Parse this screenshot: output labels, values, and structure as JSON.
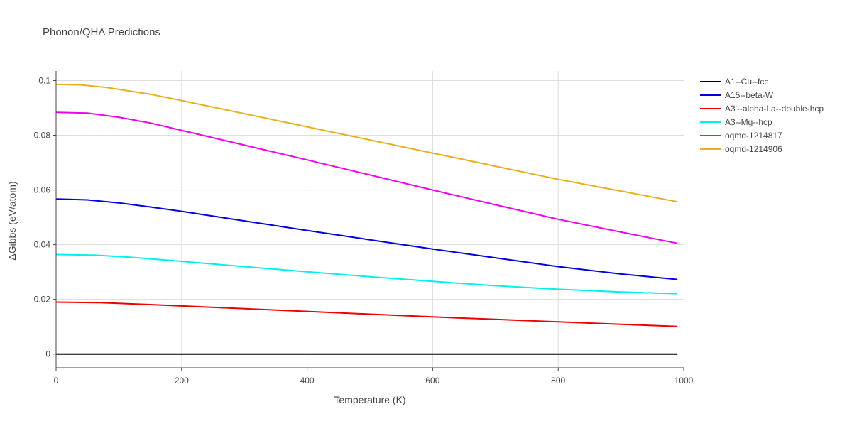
{
  "chart_data": {
    "type": "line",
    "title": "Phonon/QHA Predictions",
    "xlabel": "Temperature (K)",
    "ylabel": "ΔGibbs (eV/atom)",
    "xlim": [
      0,
      1000
    ],
    "ylim": [
      -0.005,
      0.1035
    ],
    "xticks": [
      0,
      200,
      400,
      600,
      800,
      1000
    ],
    "yticks": [
      0,
      0.02,
      0.04,
      0.06,
      0.08,
      0.1
    ],
    "xtick_labels": [
      "0",
      "200",
      "400",
      "600",
      "800",
      "1000"
    ],
    "ytick_labels": [
      "0",
      "0.02",
      "0.04",
      "0.06",
      "0.08",
      "0.1"
    ],
    "grid": true,
    "legend_position": "right",
    "series": [
      {
        "name": "A1--Cu--fcc",
        "color": "#000000",
        "points": [
          [
            0,
            0
          ],
          [
            990,
            0
          ]
        ]
      },
      {
        "name": "A15--beta-W",
        "color": "#0000dd",
        "points": [
          [
            0,
            0.0567
          ],
          [
            50,
            0.0564
          ],
          [
            100,
            0.0553
          ],
          [
            150,
            0.0538
          ],
          [
            200,
            0.0522
          ],
          [
            300,
            0.0487
          ],
          [
            400,
            0.0452
          ],
          [
            500,
            0.0418
          ],
          [
            600,
            0.0384
          ],
          [
            700,
            0.0352
          ],
          [
            800,
            0.032
          ],
          [
            900,
            0.0293
          ],
          [
            990,
            0.0273
          ]
        ]
      },
      {
        "name": "A3'--alpha-La--double-hcp",
        "color": "#ee0000",
        "points": [
          [
            0,
            0.019
          ],
          [
            70,
            0.0188
          ],
          [
            150,
            0.0181
          ],
          [
            200,
            0.0176
          ],
          [
            300,
            0.0166
          ],
          [
            400,
            0.0156
          ],
          [
            500,
            0.0146
          ],
          [
            600,
            0.0136
          ],
          [
            700,
            0.0127
          ],
          [
            800,
            0.0118
          ],
          [
            900,
            0.0109
          ],
          [
            990,
            0.0101
          ]
        ]
      },
      {
        "name": "A3--Mg--hcp",
        "color": "#00f0f0",
        "points": [
          [
            0,
            0.0364
          ],
          [
            60,
            0.0362
          ],
          [
            120,
            0.0354
          ],
          [
            200,
            0.0339
          ],
          [
            300,
            0.032
          ],
          [
            400,
            0.0301
          ],
          [
            500,
            0.0283
          ],
          [
            600,
            0.0266
          ],
          [
            700,
            0.025
          ],
          [
            800,
            0.0237
          ],
          [
            900,
            0.0227
          ],
          [
            990,
            0.0221
          ]
        ]
      },
      {
        "name": "oqmd-1214817",
        "color": "#ee00ee",
        "points": [
          [
            0,
            0.0884
          ],
          [
            50,
            0.0881
          ],
          [
            100,
            0.0866
          ],
          [
            150,
            0.0845
          ],
          [
            200,
            0.0818
          ],
          [
            300,
            0.0764
          ],
          [
            400,
            0.071
          ],
          [
            500,
            0.0655
          ],
          [
            600,
            0.06
          ],
          [
            700,
            0.0546
          ],
          [
            800,
            0.0493
          ],
          [
            900,
            0.0446
          ],
          [
            990,
            0.0405
          ]
        ]
      },
      {
        "name": "oqmd-1214906",
        "color": "#e6b020",
        "points": [
          [
            0,
            0.0986
          ],
          [
            40,
            0.0984
          ],
          [
            80,
            0.0975
          ],
          [
            150,
            0.095
          ],
          [
            200,
            0.0927
          ],
          [
            300,
            0.0879
          ],
          [
            400,
            0.0831
          ],
          [
            500,
            0.0783
          ],
          [
            600,
            0.0735
          ],
          [
            700,
            0.0687
          ],
          [
            800,
            0.0639
          ],
          [
            900,
            0.0596
          ],
          [
            990,
            0.0557
          ]
        ]
      }
    ]
  }
}
